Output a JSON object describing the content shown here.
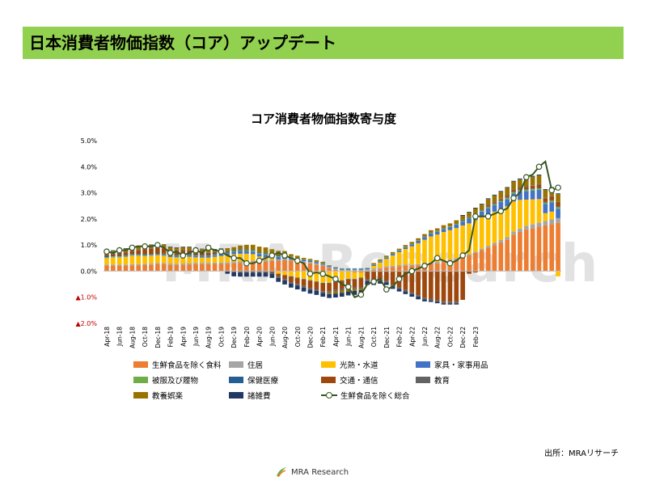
{
  "header": {
    "title": "日本消費者物価指数（コア）アップデート"
  },
  "watermark": "MRA Research",
  "source": "出所：MRAリサーチ",
  "footer": {
    "logo_text": "MRA Research"
  },
  "colors": {
    "header_bg": "#92d050",
    "neg_marker": "#c00000"
  },
  "chart_data": {
    "type": "bar",
    "stacked": true,
    "title": "コア消費者物価指数寄与度",
    "xlabel": "",
    "ylabel": "",
    "ylim": [
      -2.0,
      5.0
    ],
    "yticks": [
      {
        "v": 5.0,
        "label": "5.0%"
      },
      {
        "v": 4.0,
        "label": "4.0%"
      },
      {
        "v": 3.0,
        "label": "3.0%"
      },
      {
        "v": 2.0,
        "label": "2.0%"
      },
      {
        "v": 1.0,
        "label": "1.0%"
      },
      {
        "v": 0.0,
        "label": "0.0%"
      },
      {
        "v": -1.0,
        "label": "▲1.0%"
      },
      {
        "v": -2.0,
        "label": "▲2.0%"
      }
    ],
    "x_tick_labels": [
      "Apr-18",
      "Jun-18",
      "Aug-18",
      "Oct-18",
      "Dec-18",
      "Feb-19",
      "Apr-19",
      "Jun-19",
      "Aug-19",
      "Oct-19",
      "Dec-19",
      "Feb-20",
      "Apr-20",
      "Jun-20",
      "Aug-20",
      "Oct-20",
      "Dec-20",
      "Feb-21",
      "Apr-21",
      "Jun-21",
      "Aug-21",
      "Oct-21",
      "Dec-21",
      "Feb-22",
      "Apr-22",
      "Jun-22",
      "Aug-22",
      "Oct-22",
      "Dec-22",
      "Feb-23"
    ],
    "grid": false,
    "legend_position": "bottom",
    "series": [
      {
        "name": "生鮮食品を除く食料",
        "color": "#ed7d31",
        "values": [
          0.2,
          0.2,
          0.2,
          0.2,
          0.22,
          0.22,
          0.23,
          0.24,
          0.26,
          0.26,
          0.24,
          0.23,
          0.24,
          0.25,
          0.26,
          0.27,
          0.27,
          0.28,
          0.28,
          0.28,
          0.3,
          0.32,
          0.34,
          0.35,
          0.36,
          0.38,
          0.39,
          0.4,
          0.42,
          0.4,
          0.36,
          0.33,
          0.3,
          0.25,
          0.2,
          0.12,
          0.05,
          0.0,
          0.0,
          -0.05,
          -0.05,
          0.02,
          0.05,
          0.08,
          0.12,
          0.15,
          0.18,
          0.2,
          0.2,
          0.22,
          0.25,
          0.28,
          0.3,
          0.35,
          0.4,
          0.45,
          0.55,
          0.6,
          0.7,
          0.8,
          0.9,
          1.0,
          1.1,
          1.2,
          1.4,
          1.5,
          1.6,
          1.65,
          1.7,
          1.75,
          1.8,
          1.85
        ]
      },
      {
        "name": "住居",
        "color": "#a5a5a5",
        "values": [
          0.05,
          0.05,
          0.05,
          0.05,
          0.05,
          0.05,
          0.05,
          0.05,
          0.05,
          0.05,
          0.05,
          0.05,
          0.05,
          0.05,
          0.05,
          0.05,
          0.05,
          0.05,
          0.05,
          0.05,
          0.05,
          0.05,
          0.05,
          0.05,
          0.05,
          0.05,
          0.05,
          0.05,
          0.05,
          0.05,
          0.05,
          0.05,
          0.05,
          0.05,
          0.05,
          0.05,
          0.05,
          0.05,
          0.05,
          0.05,
          0.05,
          0.05,
          0.05,
          0.05,
          0.05,
          0.05,
          0.05,
          0.05,
          0.05,
          0.05,
          0.05,
          0.05,
          0.05,
          0.05,
          0.05,
          0.05,
          0.05,
          0.05,
          0.05,
          0.06,
          0.07,
          0.08,
          0.09,
          0.1,
          0.12,
          0.13,
          0.14,
          0.15,
          0.16,
          0.17,
          0.18,
          0.18
        ]
      },
      {
        "name": "光熱・水道",
        "color": "#ffc000",
        "values": [
          0.25,
          0.28,
          0.28,
          0.3,
          0.32,
          0.32,
          0.3,
          0.3,
          0.3,
          0.28,
          0.25,
          0.25,
          0.26,
          0.25,
          0.22,
          0.2,
          0.2,
          0.22,
          0.25,
          0.28,
          0.3,
          0.3,
          0.28,
          0.25,
          0.15,
          0.1,
          0.05,
          -0.1,
          -0.15,
          -0.2,
          -0.25,
          -0.3,
          -0.35,
          -0.4,
          -0.45,
          -0.45,
          -0.4,
          -0.35,
          -0.3,
          -0.25,
          -0.2,
          0.0,
          0.1,
          0.2,
          0.3,
          0.4,
          0.5,
          0.6,
          0.7,
          0.8,
          0.9,
          1.0,
          1.05,
          1.1,
          1.12,
          1.15,
          1.15,
          1.18,
          1.2,
          1.2,
          1.2,
          1.2,
          1.2,
          1.18,
          1.15,
          1.1,
          1.0,
          0.95,
          0.9,
          0.3,
          0.3,
          -0.2
        ]
      },
      {
        "name": "家具・家事用品",
        "color": "#4472c4",
        "values": [
          0.02,
          0.02,
          0.02,
          0.02,
          0.02,
          0.02,
          0.02,
          0.02,
          0.02,
          0.03,
          0.03,
          0.04,
          0.05,
          0.05,
          0.05,
          0.05,
          0.05,
          0.06,
          0.07,
          0.08,
          0.09,
          0.1,
          0.1,
          0.1,
          0.1,
          0.1,
          0.1,
          0.1,
          0.1,
          0.08,
          0.08,
          0.06,
          0.05,
          0.05,
          0.04,
          0.04,
          0.04,
          0.04,
          0.04,
          0.04,
          0.04,
          0.04,
          0.04,
          0.05,
          0.05,
          0.06,
          0.06,
          0.07,
          0.08,
          0.09,
          0.1,
          0.12,
          0.12,
          0.12,
          0.12,
          0.14,
          0.15,
          0.18,
          0.2,
          0.22,
          0.24,
          0.25,
          0.26,
          0.28,
          0.3,
          0.32,
          0.33,
          0.34,
          0.35,
          0.35,
          0.36,
          0.36
        ]
      },
      {
        "name": "被服及び履物",
        "color": "#70ad47",
        "values": [
          0.02,
          0.02,
          0.02,
          0.02,
          0.02,
          0.02,
          0.02,
          0.02,
          0.02,
          0.02,
          0.02,
          0.02,
          0.02,
          0.02,
          0.02,
          0.02,
          0.02,
          0.02,
          0.02,
          0.02,
          0.03,
          0.03,
          0.03,
          0.03,
          0.03,
          0.03,
          0.02,
          0.02,
          0.02,
          0.02,
          0.02,
          0.02,
          0.02,
          0.02,
          0.02,
          0.02,
          0.02,
          0.02,
          0.02,
          0.02,
          0.02,
          0.02,
          0.02,
          0.02,
          0.02,
          0.02,
          0.02,
          0.02,
          0.02,
          0.02,
          0.02,
          0.02,
          0.02,
          0.02,
          0.02,
          0.02,
          0.03,
          0.03,
          0.03,
          0.03,
          0.04,
          0.04,
          0.04,
          0.05,
          0.05,
          0.05,
          0.05,
          0.06,
          0.06,
          0.06,
          0.06,
          0.06
        ]
      },
      {
        "name": "保健医療",
        "color": "#255e91",
        "values": [
          0.03,
          0.03,
          0.03,
          0.03,
          0.03,
          0.03,
          0.03,
          0.03,
          0.03,
          0.03,
          0.03,
          0.03,
          0.03,
          0.03,
          0.03,
          0.03,
          0.03,
          0.03,
          0.03,
          0.03,
          0.03,
          0.03,
          0.03,
          0.03,
          0.03,
          0.03,
          0.03,
          0.03,
          0.03,
          -0.02,
          -0.02,
          -0.02,
          -0.02,
          -0.02,
          -0.02,
          -0.02,
          -0.02,
          -0.02,
          -0.02,
          -0.02,
          -0.02,
          -0.02,
          -0.02,
          -0.02,
          -0.02,
          -0.02,
          -0.02,
          -0.02,
          -0.02,
          -0.02,
          -0.02,
          -0.02,
          -0.02,
          -0.02,
          -0.02,
          -0.02,
          0.02,
          0.02,
          0.02,
          0.02,
          0.02,
          0.02,
          0.02,
          0.02,
          0.02,
          0.02,
          0.02,
          0.02,
          0.02,
          0.02,
          0.02,
          0.02
        ]
      },
      {
        "name": "交通・通信",
        "color": "#9e480e",
        "values": [
          0.05,
          0.06,
          0.08,
          0.1,
          0.12,
          0.15,
          0.18,
          0.2,
          0.2,
          0.2,
          0.18,
          0.15,
          0.15,
          0.15,
          0.12,
          0.1,
          0.08,
          0.05,
          0.03,
          0.02,
          0.0,
          0.0,
          0.0,
          0.0,
          0.0,
          0.0,
          -0.05,
          -0.1,
          -0.15,
          -0.2,
          -0.22,
          -0.25,
          -0.28,
          -0.28,
          -0.3,
          -0.3,
          -0.3,
          -0.3,
          -0.3,
          -0.3,
          -0.35,
          -0.3,
          -0.3,
          -0.3,
          -0.35,
          -0.5,
          -0.6,
          -0.7,
          -0.8,
          -0.9,
          -1.0,
          -1.05,
          -1.1,
          -1.15,
          -1.15,
          -1.15,
          -1.1,
          -0.1,
          -0.05,
          0.0,
          0.05,
          0.05,
          0.05,
          0.06,
          0.07,
          0.08,
          0.09,
          0.1,
          0.12,
          0.14,
          0.15,
          0.16
        ]
      },
      {
        "name": "教育",
        "color": "#636363",
        "values": [
          0.02,
          0.02,
          0.02,
          0.02,
          0.02,
          0.02,
          0.02,
          0.02,
          0.02,
          0.02,
          0.02,
          0.02,
          0.02,
          0.02,
          0.02,
          0.02,
          0.02,
          0.02,
          0.02,
          0.02,
          -0.05,
          -0.06,
          -0.06,
          -0.06,
          -0.06,
          -0.06,
          -0.06,
          -0.06,
          -0.06,
          -0.06,
          -0.06,
          -0.06,
          -0.06,
          -0.06,
          -0.06,
          -0.06,
          -0.06,
          -0.06,
          -0.06,
          -0.06,
          -0.06,
          -0.06,
          -0.06,
          -0.06,
          -0.06,
          -0.06,
          -0.06,
          -0.06,
          -0.06,
          -0.06,
          -0.06,
          -0.06,
          -0.06,
          -0.06,
          -0.06,
          -0.06,
          0.02,
          0.02,
          0.02,
          0.02,
          0.02,
          0.02,
          0.02,
          0.02,
          0.02,
          0.02,
          0.02,
          0.02,
          0.02,
          0.02,
          0.02,
          0.02
        ]
      },
      {
        "name": "教養娯楽",
        "color": "#997300",
        "values": [
          0.1,
          0.1,
          0.12,
          0.12,
          0.13,
          0.13,
          0.13,
          0.12,
          0.12,
          0.12,
          0.1,
          0.1,
          0.1,
          0.1,
          0.1,
          0.1,
          0.1,
          0.1,
          0.1,
          0.1,
          0.12,
          0.15,
          0.18,
          0.2,
          0.22,
          0.22,
          0.2,
          0.18,
          0.15,
          0.1,
          0.08,
          0.05,
          0.05,
          0.05,
          0.05,
          -0.05,
          -0.08,
          -0.1,
          -0.1,
          -0.08,
          -0.05,
          0.0,
          0.05,
          0.05,
          0.05,
          0.05,
          0.05,
          0.06,
          0.07,
          0.08,
          0.1,
          0.1,
          0.1,
          0.12,
          0.12,
          0.14,
          0.15,
          0.16,
          0.18,
          0.2,
          0.22,
          0.24,
          0.26,
          0.28,
          0.3,
          0.3,
          0.32,
          0.33,
          0.34,
          0.3,
          0.3,
          0.3
        ]
      },
      {
        "name": "諸雑費",
        "color": "#203864",
        "values": [
          0.02,
          0.02,
          0.02,
          0.02,
          0.02,
          0.02,
          0.02,
          0.02,
          0.02,
          0.02,
          0.02,
          0.02,
          0.02,
          0.02,
          0.02,
          0.02,
          0.02,
          0.02,
          0.02,
          -0.1,
          -0.15,
          -0.15,
          -0.15,
          -0.15,
          -0.15,
          -0.15,
          -0.15,
          -0.15,
          -0.15,
          -0.15,
          -0.15,
          -0.15,
          -0.15,
          -0.15,
          -0.15,
          -0.15,
          -0.15,
          -0.15,
          -0.15,
          -0.15,
          -0.15,
          -0.15,
          -0.15,
          -0.1,
          -0.1,
          -0.1,
          -0.1,
          -0.1,
          -0.1,
          -0.1,
          -0.08,
          -0.05,
          -0.05,
          -0.05,
          -0.05,
          -0.05,
          0.03,
          0.03,
          0.03,
          0.03,
          0.03,
          0.03,
          0.03,
          0.03,
          0.03,
          0.03,
          0.03,
          0.03,
          0.03,
          0.03,
          0.03,
          0.03
        ]
      },
      {
        "name": "生鮮食品を除く総合",
        "type": "line",
        "color": "#385723",
        "values": [
          0.75,
          0.7,
          0.8,
          0.8,
          0.9,
          0.95,
          0.95,
          0.95,
          1.0,
          0.9,
          0.7,
          0.75,
          0.6,
          0.7,
          0.8,
          0.7,
          0.9,
          0.8,
          0.75,
          0.6,
          0.5,
          0.5,
          0.3,
          0.3,
          0.4,
          0.5,
          0.6,
          0.7,
          0.6,
          0.5,
          0.4,
          0.3,
          -0.1,
          -0.05,
          -0.1,
          -0.2,
          -0.3,
          -0.5,
          -0.6,
          -1.0,
          -0.9,
          -0.5,
          -0.4,
          -0.3,
          -0.7,
          -0.6,
          -0.3,
          -0.1,
          0.0,
          0.1,
          0.2,
          0.3,
          0.5,
          0.4,
          0.3,
          0.4,
          0.6,
          0.8,
          2.1,
          2.1,
          2.1,
          2.2,
          2.3,
          2.4,
          2.8,
          3.0,
          3.6,
          3.7,
          4.0,
          4.2,
          3.1,
          3.2
        ]
      }
    ]
  }
}
